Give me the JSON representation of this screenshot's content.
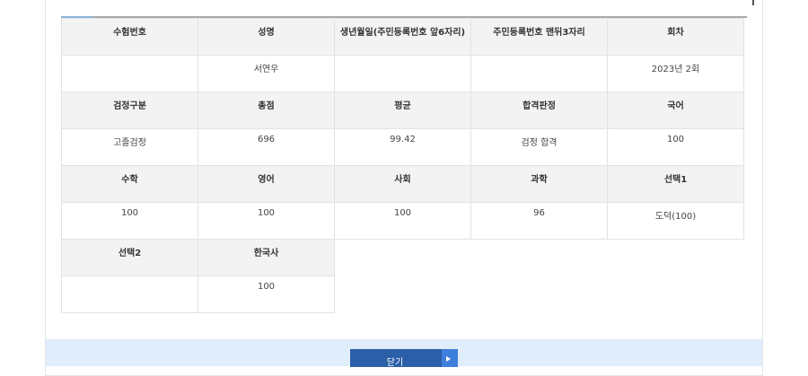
{
  "rows": [
    {
      "headers": [
        "수험번호",
        "성명",
        "생년월일(주민등록번호 앞6자리)",
        "주민등록번호 맨뒤3자리",
        "회차"
      ],
      "values": [
        "",
        "서연우",
        "",
        "",
        "2023년 2회"
      ]
    },
    {
      "headers": [
        "검정구분",
        "총점",
        "평균",
        "합격판정",
        "국어"
      ],
      "values": [
        "고졸검정",
        "696",
        "99.42",
        "검정 합격",
        "100"
      ]
    },
    {
      "headers": [
        "수학",
        "영어",
        "사회",
        "과학",
        "선택1"
      ],
      "values": [
        "100",
        "100",
        "100",
        "96",
        "도덕(100)"
      ]
    },
    {
      "headers": [
        "선택2",
        "한국사"
      ],
      "values": [
        "",
        "100"
      ]
    }
  ],
  "footer": {
    "close_label": "닫기"
  },
  "colors": {
    "accent": "#2b5fa8",
    "footer_bg": "#e0edfb",
    "header_bg": "#f3f3f3"
  }
}
